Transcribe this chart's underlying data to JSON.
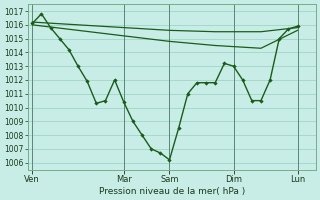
{
  "background_color": "#c8ede6",
  "grid_color": "#a8d8cc",
  "line_color": "#1a5c1a",
  "xlabel": "Pression niveau de la mer( hPa )",
  "ylim": [
    1005.5,
    1017.5
  ],
  "yticks": [
    1006,
    1007,
    1008,
    1009,
    1010,
    1011,
    1012,
    1013,
    1014,
    1015,
    1016,
    1017
  ],
  "day_labels": [
    "Ven",
    "Mar",
    "Sam",
    "Dim",
    "Lun"
  ],
  "day_tick_x": [
    0,
    10,
    15,
    22,
    29
  ],
  "xlim": [
    -0.5,
    31
  ],
  "line_detail_x": [
    0,
    1,
    2,
    3,
    4,
    5,
    6,
    7,
    8,
    9,
    10,
    11,
    12,
    13,
    14,
    15,
    16,
    17,
    18,
    19,
    20,
    21,
    22,
    23,
    24,
    25,
    26,
    27,
    28,
    29
  ],
  "line_detail_y": [
    1016.1,
    1016.8,
    1015.8,
    1015.0,
    1014.2,
    1013.0,
    1011.9,
    1010.3,
    1010.5,
    1012.0,
    1010.4,
    1009.0,
    1008.0,
    1007.0,
    1006.7,
    1006.2,
    1008.5,
    1011.0,
    1011.8,
    1011.8,
    1011.8,
    1013.2,
    1013.0,
    1012.0,
    1010.5,
    1010.5,
    1012.0,
    1015.0,
    1015.7,
    1015.9
  ],
  "line_upper_x": [
    0,
    5,
    10,
    15,
    20,
    25,
    29
  ],
  "line_upper_y": [
    1016.2,
    1016.0,
    1015.8,
    1015.6,
    1015.5,
    1015.5,
    1015.8
  ],
  "line_lower_x": [
    0,
    5,
    10,
    15,
    20,
    25,
    29
  ],
  "line_lower_y": [
    1016.0,
    1015.6,
    1015.2,
    1014.8,
    1014.5,
    1014.3,
    1015.6
  ],
  "tick_fontsize": 5.5,
  "xlabel_fontsize": 6.5
}
